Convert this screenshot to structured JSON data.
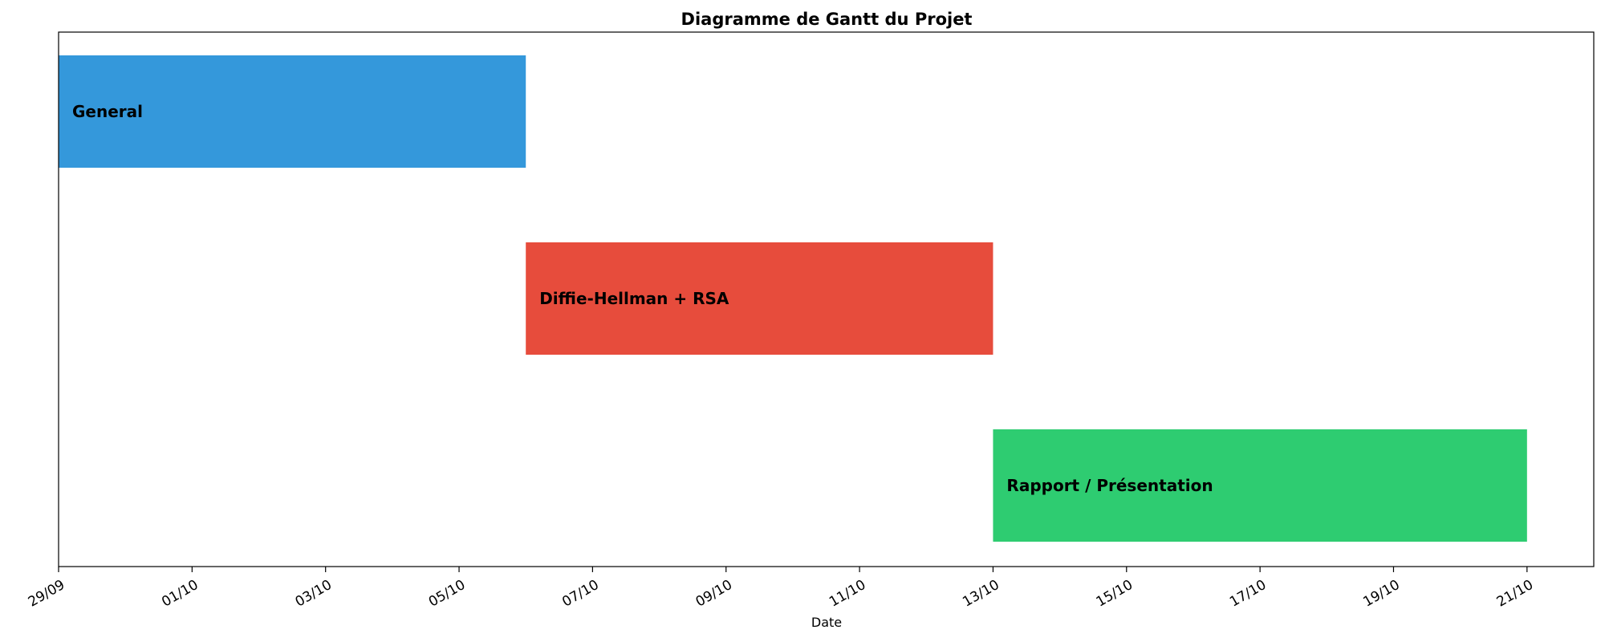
{
  "chart_data": {
    "type": "gantt",
    "title": "Diagramme de Gantt du Projet",
    "xlabel": "Date",
    "ylabel": "",
    "x_axis": "date",
    "date_format": "DD/MM",
    "xlim": [
      "2025-09-29",
      "2025-10-22"
    ],
    "x_tick_labels": [
      "29/09",
      "01/10",
      "03/10",
      "05/10",
      "07/10",
      "09/10",
      "11/10",
      "13/10",
      "15/10",
      "17/10",
      "19/10",
      "21/10"
    ],
    "x_ticks": [
      "2025-09-29",
      "2025-10-01",
      "2025-10-03",
      "2025-10-05",
      "2025-10-07",
      "2025-10-09",
      "2025-10-11",
      "2025-10-13",
      "2025-10-15",
      "2025-10-17",
      "2025-10-19",
      "2025-10-21"
    ],
    "grid": false,
    "tasks": [
      {
        "name": "General",
        "start": "2025-09-29",
        "end": "2025-10-06",
        "color": "#3498db"
      },
      {
        "name": "Diffie-Hellman + RSA",
        "start": "2025-10-06",
        "end": "2025-10-13",
        "color": "#e74c3c"
      },
      {
        "name": "Rapport / Présentation",
        "start": "2025-10-13",
        "end": "2025-10-21",
        "color": "#2ecc71"
      }
    ]
  }
}
